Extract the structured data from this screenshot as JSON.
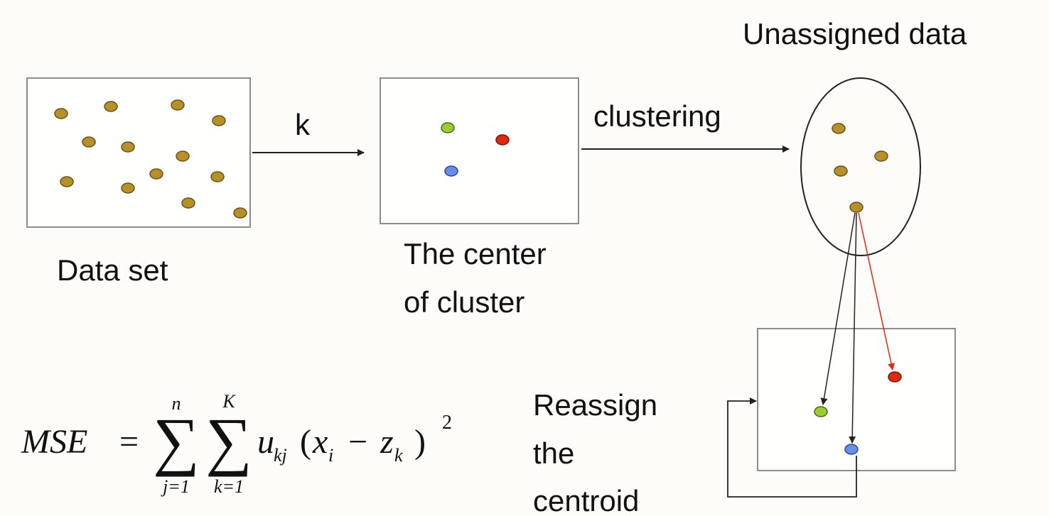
{
  "labels": {
    "dataset": "Data set",
    "center_line1": "The center",
    "center_line2": "of cluster",
    "unassigned": "Unassigned data",
    "k_arrow": "k",
    "clustering_arrow": "clustering",
    "reassign_line1": "Reassign",
    "reassign_line2": "the",
    "reassign_line3": "centroid"
  },
  "formula": {
    "lhs": "MSE",
    "equals": "=",
    "sigma": "∑",
    "sum1_upper": "n",
    "sum1_lower": "j=1",
    "sum2_upper": "K",
    "sum2_lower": "k=1",
    "u": "u",
    "u_sub": "kj",
    "open_paren": "(",
    "x": "x",
    "x_sub": "i",
    "minus": "−",
    "z": "z",
    "z_sub": "k",
    "close_paren": ")",
    "exponent": "2"
  },
  "colors": {
    "data_point": "#b8902a",
    "data_point_stroke": "#6b5213",
    "center_green": "#9acd32",
    "center_red": "#dd2a10",
    "center_blue": "#6a8de8",
    "box_border": "#8c8c8c",
    "arrow": "#222222",
    "reassign_arrow": "#dd2a10"
  }
}
